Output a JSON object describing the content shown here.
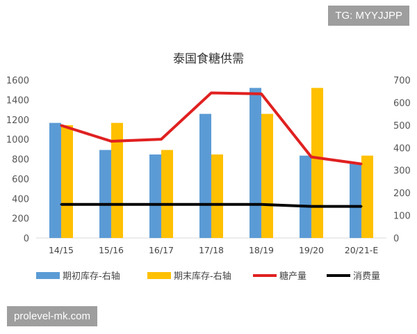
{
  "watermarks": {
    "top": "TG: MYYJJPP",
    "bottom": "prolevel-mk.com"
  },
  "chart_data": {
    "type": "bar",
    "title": "泰国食糖供需",
    "categories": [
      "14/15",
      "15/16",
      "16/17",
      "17/18",
      "18/19",
      "19/20",
      "20/21-E"
    ],
    "left_axis": {
      "range": [
        0,
        1600
      ],
      "ticks": [
        0,
        200,
        400,
        600,
        800,
        1000,
        1200,
        1400,
        1600
      ]
    },
    "right_axis": {
      "range": [
        0,
        700
      ],
      "ticks": [
        0,
        100,
        200,
        300,
        400,
        500,
        600,
        700
      ]
    },
    "grid": false,
    "legend_position": "bottom",
    "series": [
      {
        "name": "期初库存-右轴",
        "kind": "bar",
        "axis": "right",
        "color": "#5b9bd5",
        "values": [
          510,
          390,
          370,
          550,
          665,
          365,
          330
        ]
      },
      {
        "name": "期末库存-右轴",
        "kind": "bar",
        "axis": "right",
        "color": "#ffc000",
        "values": [
          500,
          510,
          390,
          370,
          550,
          665,
          365
        ]
      },
      {
        "name": "糖产量",
        "kind": "line",
        "axis": "left",
        "color": "#e02020",
        "values": [
          1140,
          980,
          1000,
          1470,
          1460,
          820,
          750
        ]
      },
      {
        "name": "消费量",
        "kind": "line",
        "axis": "left",
        "color": "#000000",
        "values": [
          340,
          340,
          340,
          340,
          340,
          320,
          320
        ]
      }
    ]
  }
}
